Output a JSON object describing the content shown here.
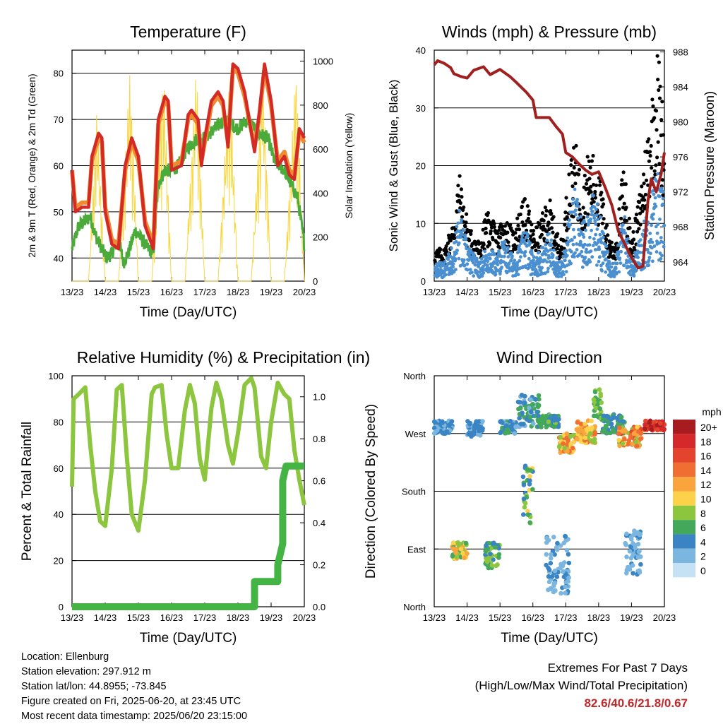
{
  "chart_data": [
    {
      "type": "line",
      "title": "Temperature (F)",
      "xlabel": "Time (Day/UTC)",
      "ylabel": "2m & 9m T (Red, Orange) & 2m Td (Green)",
      "y2label": "Solar Insolation (Yellow)",
      "x_ticks": [
        "13/23",
        "14/23",
        "15/23",
        "16/23",
        "17/23",
        "18/23",
        "19/23",
        "20/23"
      ],
      "ylim": [
        35,
        85
      ],
      "y_ticks": [
        40,
        50,
        60,
        70,
        80
      ],
      "y2lim": [
        0,
        1050
      ],
      "y2_ticks": [
        0,
        200,
        400,
        600,
        800,
        1000
      ],
      "grid": true,
      "colors": {
        "t2m": "#d42a25",
        "t9m": "#f08a30",
        "td": "#4aaa3a",
        "solar": "#f7d640"
      },
      "series": [
        {
          "key": "t2m",
          "x": [
            0,
            0.1,
            0.3,
            0.5,
            0.6,
            0.8,
            0.9,
            1.0,
            1.2,
            1.4,
            1.6,
            1.8,
            2.0,
            2.2,
            2.45,
            2.6,
            2.8,
            2.9,
            3.0,
            3.3,
            3.5,
            3.6,
            3.8,
            3.9,
            4.0,
            4.2,
            4.4,
            4.55,
            4.7,
            4.85,
            5.0,
            5.2,
            5.5,
            5.65,
            5.8,
            5.9,
            6.0,
            6.2,
            6.4,
            6.55,
            6.7,
            6.85,
            7.0
          ],
          "y": [
            59,
            50,
            51,
            51,
            62,
            67,
            66,
            50,
            43,
            42,
            60,
            66,
            62,
            47,
            42,
            70,
            75,
            74,
            59,
            60,
            71,
            72,
            70,
            60,
            66,
            74,
            76,
            74,
            64,
            82,
            81,
            76,
            63,
            72,
            82,
            78,
            74,
            60,
            62,
            58,
            57,
            68,
            66
          ]
        },
        {
          "key": "t9m",
          "x": [
            0,
            0.1,
            0.3,
            0.5,
            0.6,
            0.8,
            0.9,
            1.0,
            1.2,
            1.4,
            1.6,
            1.8,
            2.0,
            2.2,
            2.45,
            2.6,
            2.8,
            2.9,
            3.0,
            3.3,
            3.5,
            3.6,
            3.8,
            3.9,
            4.0,
            4.2,
            4.4,
            4.55,
            4.7,
            4.85,
            5.0,
            5.2,
            5.5,
            5.65,
            5.8,
            5.9,
            6.0,
            6.2,
            6.4,
            6.55,
            6.7,
            6.85,
            7.0
          ],
          "y": [
            59,
            51,
            52,
            52,
            61,
            66,
            65,
            51,
            44,
            43,
            59,
            65,
            61,
            48,
            43,
            69,
            74,
            73,
            60,
            61,
            70,
            71,
            69,
            61,
            65,
            73,
            75,
            73,
            65,
            81,
            80,
            75,
            64,
            71,
            81,
            77,
            73,
            61,
            63,
            59,
            58,
            67,
            65
          ]
        },
        {
          "key": "td",
          "x": [
            0,
            0.2,
            0.4,
            0.55,
            0.7,
            0.9,
            1.05,
            1.2,
            1.4,
            1.55,
            1.7,
            1.9,
            2.1,
            2.3,
            2.45,
            2.6,
            2.8,
            3.0,
            3.2,
            3.5,
            3.8,
            4.0,
            4.3,
            4.6,
            4.8,
            5.0,
            5.3,
            5.6,
            5.9,
            6.1,
            6.4,
            6.6,
            6.8,
            7.0
          ],
          "y": [
            42,
            47,
            48,
            49,
            45,
            42,
            40,
            41,
            44,
            39,
            41,
            46,
            44,
            42,
            41,
            56,
            59,
            59,
            60,
            64,
            66,
            66,
            68,
            70,
            69,
            68,
            70,
            67,
            66,
            61,
            59,
            56,
            53,
            43
          ]
        },
        {
          "key": "solar",
          "x": [
            0,
            0.5,
            0.75,
            1.0,
            1.4,
            1.75,
            2.0,
            2.4,
            2.75,
            3.0,
            3.4,
            3.75,
            4.0,
            4.4,
            4.75,
            5.0,
            5.4,
            5.75,
            6.0,
            6.4,
            6.75,
            7.0
          ],
          "y": [
            0,
            0,
            800,
            0,
            0,
            980,
            0,
            0,
            1000,
            0,
            0,
            1000,
            0,
            0,
            1000,
            0,
            0,
            1000,
            0,
            0,
            1000,
            0
          ]
        }
      ]
    },
    {
      "type": "scatter",
      "title": "Winds (mph) & Pressure (mb)",
      "xlabel": "Time (Day/UTC)",
      "ylabel": "Sonic Wind & Gust (Blue, Black)",
      "y2label": "Station Pressure (Maroon)",
      "x_ticks": [
        "13/23",
        "14/23",
        "15/23",
        "16/23",
        "17/23",
        "18/23",
        "19/23",
        "20/23"
      ],
      "ylim": [
        0,
        40
      ],
      "y_ticks": [
        0,
        10,
        20,
        30,
        40
      ],
      "y2lim": [
        961.8,
        988.2
      ],
      "y2_ticks": [
        964,
        968,
        972,
        976,
        980,
        984,
        988
      ],
      "grid": true,
      "colors": {
        "wind": "#4a90d0",
        "gust": "#000000",
        "pressure": "#a01f1f"
      },
      "wind_profile": {
        "x": [
          0,
          0.3,
          0.6,
          0.75,
          0.9,
          1.1,
          1.4,
          1.6,
          1.9,
          2.1,
          2.4,
          2.6,
          2.8,
          3.0,
          3.2,
          3.5,
          3.7,
          3.9,
          4.1,
          4.3,
          4.5,
          4.7,
          4.9,
          5.1,
          5.3,
          5.5,
          5.6,
          5.75,
          5.9,
          6.0,
          6.2,
          6.4,
          6.6,
          6.8,
          7.0
        ],
        "y": [
          3,
          3,
          6,
          12,
          8,
          5,
          3,
          6,
          4,
          7,
          4,
          6,
          9,
          4,
          5,
          8,
          4,
          3,
          11,
          15,
          9,
          13,
          14,
          9,
          4,
          3,
          6,
          12,
          7,
          3,
          6,
          10,
          15,
          18,
          14
        ]
      },
      "gust_profile": {
        "x": [
          0,
          0.3,
          0.6,
          0.75,
          0.9,
          1.1,
          1.4,
          1.6,
          1.9,
          2.1,
          2.4,
          2.6,
          2.8,
          3.0,
          3.2,
          3.5,
          3.7,
          3.9,
          4.1,
          4.3,
          4.5,
          4.7,
          4.9,
          5.1,
          5.3,
          5.5,
          5.6,
          5.75,
          5.9,
          6.0,
          6.2,
          6.4,
          6.6,
          6.8,
          7.0
        ],
        "y": [
          5,
          5,
          10,
          17,
          12,
          8,
          6,
          11,
          8,
          10,
          8,
          11,
          13,
          8,
          9,
          13,
          8,
          6,
          18,
          21,
          15,
          20,
          19,
          14,
          7,
          6,
          10,
          18,
          12,
          6,
          12,
          20,
          28,
          36,
          24
        ]
      },
      "pressure": {
        "x": [
          0,
          0.1,
          0.3,
          0.5,
          0.6,
          0.8,
          1.0,
          1.2,
          1.5,
          1.7,
          2.0,
          2.3,
          2.5,
          2.8,
          3.0,
          3.1,
          3.3,
          3.5,
          3.7,
          3.9,
          4.0,
          4.2,
          4.4,
          4.6,
          4.8,
          5.0,
          5.2,
          5.4,
          5.6,
          5.8,
          6.0,
          6.2,
          6.35,
          6.5,
          6.6,
          6.75,
          6.9,
          7.0
        ],
        "y": [
          986.5,
          987.0,
          986.7,
          986.2,
          985.5,
          985.2,
          985.0,
          985.9,
          986.3,
          985.4,
          986.0,
          985.2,
          984.5,
          983.4,
          982.5,
          980.5,
          980.5,
          980.5,
          979.5,
          978.6,
          976.5,
          976.0,
          975.2,
          974.5,
          974.0,
          974.3,
          972.5,
          970.5,
          967.5,
          966.0,
          964.5,
          963.3,
          963.5,
          971.0,
          973.5,
          972.0,
          974.0,
          976.5
        ]
      }
    },
    {
      "type": "line",
      "title": "Relative Humidity (%) & Precipitation (in)",
      "xlabel": "Time (Day/UTC)",
      "ylabel": "Percent & Total Rainfall",
      "x_ticks": [
        "13/23",
        "14/23",
        "15/23",
        "16/23",
        "17/23",
        "18/23",
        "19/23",
        "20/23"
      ],
      "ylim": [
        0,
        100
      ],
      "y_ticks": [
        0,
        20,
        40,
        60,
        80,
        100
      ],
      "y2lim": [
        0,
        1.1
      ],
      "y2_ticks": [
        0.0,
        0.2,
        0.4,
        0.6,
        0.8,
        1.0
      ],
      "grid": true,
      "colors": {
        "rh": "#8cc63e",
        "precip": "#44b544"
      },
      "series": [
        {
          "key": "rh",
          "x": [
            0,
            0.05,
            0.2,
            0.4,
            0.55,
            0.7,
            0.85,
            1.0,
            1.2,
            1.35,
            1.5,
            1.65,
            1.8,
            2.0,
            2.2,
            2.4,
            2.5,
            2.7,
            2.85,
            3.0,
            3.2,
            3.4,
            3.55,
            3.7,
            3.85,
            4.0,
            4.2,
            4.35,
            4.5,
            4.7,
            4.85,
            5.0,
            5.2,
            5.4,
            5.5,
            5.7,
            5.85,
            6.0,
            6.2,
            6.4,
            6.55,
            6.7,
            6.85,
            7.0
          ],
          "y": [
            52,
            90,
            92,
            95,
            70,
            50,
            37,
            35,
            60,
            94,
            96,
            65,
            40,
            33,
            55,
            92,
            95,
            96,
            75,
            60,
            60,
            85,
            96,
            88,
            64,
            55,
            86,
            97,
            90,
            70,
            62,
            75,
            96,
            99,
            95,
            65,
            60,
            80,
            97,
            92,
            90,
            68,
            55,
            44
          ]
        },
        {
          "key": "precip",
          "x": [
            0,
            5.5,
            5.5,
            6.2,
            6.2,
            6.35,
            6.35,
            6.45,
            7.0
          ],
          "y": [
            0.0,
            0.0,
            0.12,
            0.12,
            0.2,
            0.3,
            0.6,
            0.67,
            0.67
          ]
        }
      ]
    },
    {
      "type": "scatter",
      "title": "Wind Direction",
      "xlabel": "Time (Day/UTC)",
      "ylabel": "Direction (Colored By Speed)",
      "x_ticks": [
        "13/23",
        "14/23",
        "15/23",
        "16/23",
        "17/23",
        "18/23",
        "19/23",
        "20/23"
      ],
      "y_ticks": [
        "North",
        "East",
        "South",
        "West",
        "North"
      ],
      "ylim": [
        0,
        360
      ],
      "grid": true,
      "legend": {
        "title": "mph",
        "placement": "right",
        "labels": [
          "20+",
          "18",
          "16",
          "14",
          "12",
          "10",
          "8",
          "6",
          "4",
          "2",
          "0"
        ],
        "colors": [
          "#a81c20",
          "#d4282a",
          "#e4442e",
          "#f06e32",
          "#f9a43c",
          "#fdd24a",
          "#8cc63e",
          "#44a85a",
          "#3a84c4",
          "#7ab6e0",
          "#c4e2f4"
        ]
      },
      "clusters": [
        {
          "x": [
            0.0,
            0.55
          ],
          "dir": [
            270,
            290
          ],
          "speed": [
            2,
            5
          ]
        },
        {
          "x": [
            0.55,
            1.0
          ],
          "dir": [
            75,
            100
          ],
          "speed": [
            6,
            13
          ]
        },
        {
          "x": [
            1.0,
            1.5
          ],
          "dir": [
            265,
            290
          ],
          "speed": [
            2,
            5
          ]
        },
        {
          "x": [
            1.55,
            2.0
          ],
          "dir": [
            60,
            100
          ],
          "speed": [
            3,
            9
          ]
        },
        {
          "x": [
            2.0,
            2.5
          ],
          "dir": [
            270,
            290
          ],
          "speed": [
            2,
            6
          ]
        },
        {
          "x": [
            2.55,
            3.2
          ],
          "dir": [
            280,
            330
          ],
          "speed": [
            2,
            7
          ]
        },
        {
          "x": [
            2.7,
            3.0
          ],
          "dir": [
            130,
            220
          ],
          "speed": [
            3,
            10
          ]
        },
        {
          "x": [
            3.2,
            3.8
          ],
          "dir": [
            280,
            300
          ],
          "speed": [
            3,
            8
          ]
        },
        {
          "x": [
            3.8,
            4.3
          ],
          "dir": [
            240,
            270
          ],
          "speed": [
            8,
            15
          ]
        },
        {
          "x": [
            4.3,
            4.9
          ],
          "dir": [
            255,
            290
          ],
          "speed": [
            8,
            15
          ]
        },
        {
          "x": [
            4.85,
            5.1
          ],
          "dir": [
            290,
            340
          ],
          "speed": [
            5,
            9
          ]
        },
        {
          "x": [
            5.1,
            5.8
          ],
          "dir": [
            270,
            300
          ],
          "speed": [
            3,
            7
          ]
        },
        {
          "x": [
            5.6,
            6.3
          ],
          "dir": [
            250,
            280
          ],
          "speed": [
            8,
            16
          ]
        },
        {
          "x": [
            6.4,
            7.0
          ],
          "dir": [
            275,
            290
          ],
          "speed": [
            14,
            20
          ]
        },
        {
          "x": [
            3.4,
            4.1
          ],
          "dir": [
            20,
            110
          ],
          "speed": [
            1,
            4
          ]
        },
        {
          "x": [
            5.8,
            6.3
          ],
          "dir": [
            50,
            120
          ],
          "speed": [
            1,
            4
          ]
        }
      ]
    }
  ],
  "info": {
    "location": "Location: Ellenburg",
    "elevation": "Station elevation: 297.912 m",
    "latlon": "Station lat/lon: 44.8955; -73.845",
    "created": "Figure created on Fri, 2025-06-20, at 23:45 UTC",
    "recent": "Most recent data timestamp: 2025/06/20 23:15:00"
  },
  "extremes": {
    "line1": "Extremes For Past 7 Days",
    "line2": "(High/Low/Max Wind/Total Precipitation)",
    "values": "82.6/40.6/21.8/0.67"
  }
}
